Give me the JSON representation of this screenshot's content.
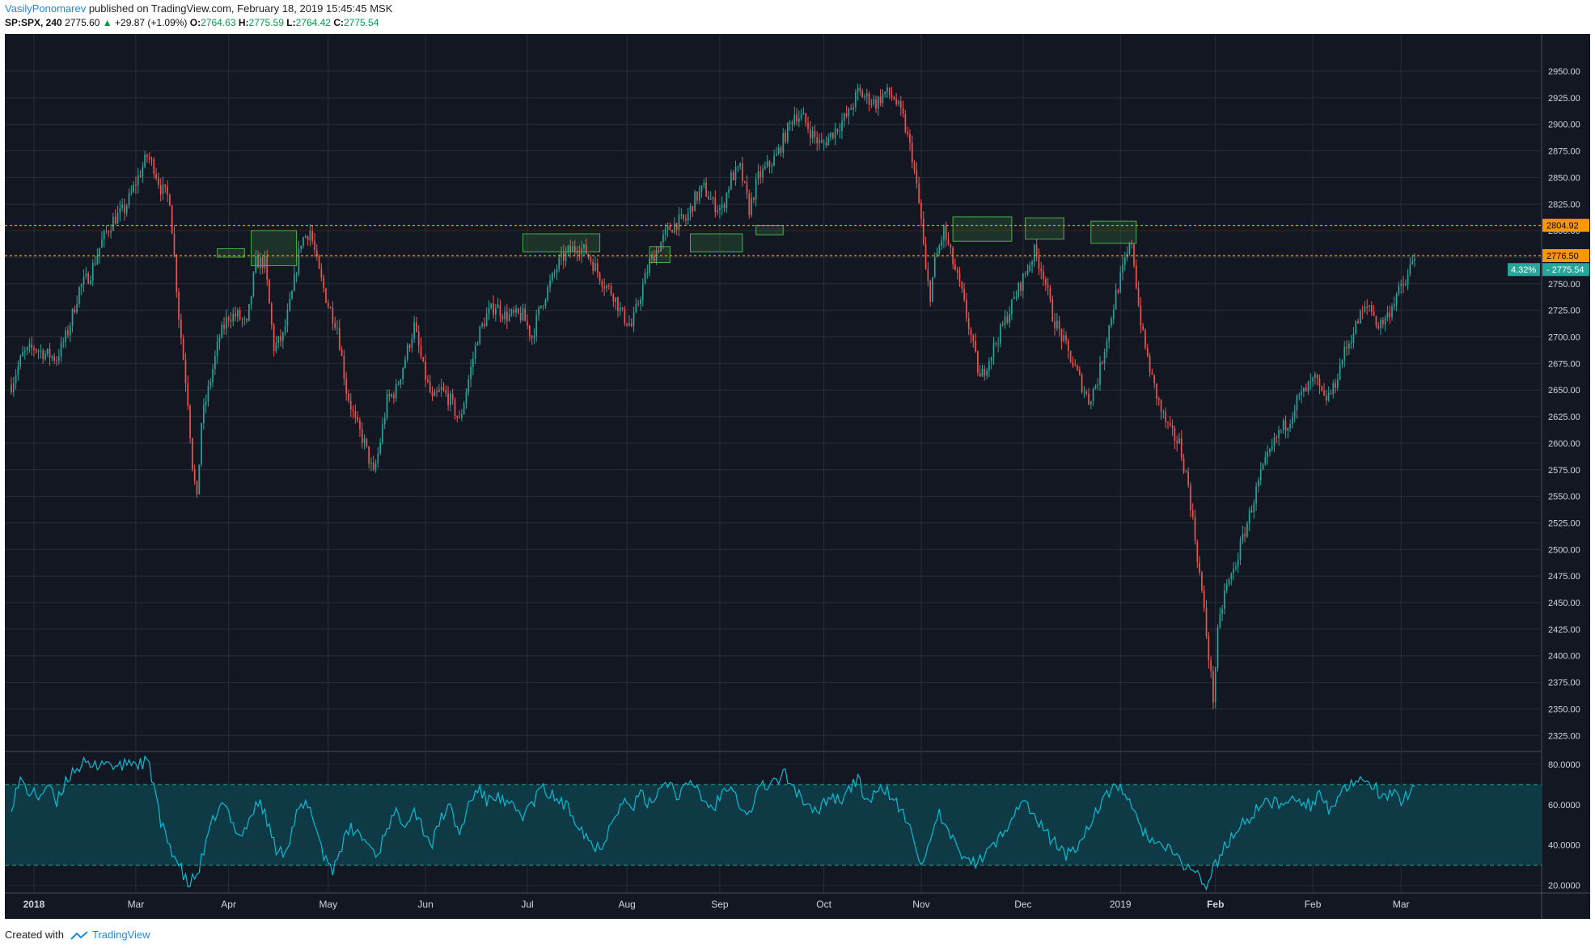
{
  "header": {
    "author": "VasilyPonomarev",
    "published_text": "published on TradingView.com, February 18, 2019 15:45:45 MSK",
    "symbol": "SP:SPX, 240",
    "last": "2775.60",
    "arrow": "▲",
    "change": "+29.87 (+1.09%)",
    "open_label": "O:",
    "open": "2764.63",
    "high_label": "H:",
    "high": "2775.59",
    "low_label": "L:",
    "low": "2764.42",
    "close_label": "C:",
    "close": "2775.54"
  },
  "footer": {
    "created_with": "Created with",
    "brand": "TradingView"
  },
  "colors": {
    "background": "#131722",
    "grid": "#2a2e39",
    "up": "#26a69a",
    "down": "#ef5350",
    "level": "#ff9800",
    "box": "#4caf50",
    "rsi": "#00bcd4",
    "rsi_band": "#0e3a45",
    "rsi_level": "#26a69a"
  },
  "chart_data": [
    {
      "type": "candlestick",
      "symbol": "SP:SPX",
      "interval": "240",
      "x_ticks": [
        "2018",
        "Feb",
        "Mar",
        "Apr",
        "May",
        "Jun",
        "Jul",
        "Aug",
        "Sep",
        "Oct",
        "Nov",
        "Dec",
        "2019",
        "Feb",
        "Mar"
      ],
      "y_ticks": [
        "2950.00",
        "2925.00",
        "2900.00",
        "2875.00",
        "2850.00",
        "2825.00",
        "2800.00",
        "2775.00",
        "2750.00",
        "2725.00",
        "2700.00",
        "2675.00",
        "2650.00",
        "2625.00",
        "2600.00",
        "2575.00",
        "2550.00",
        "2525.00",
        "2500.00",
        "2475.00",
        "2450.00",
        "2425.00",
        "2400.00",
        "2375.00",
        "2350.00",
        "2325.00"
      ],
      "ylim": [
        2310,
        2985
      ],
      "grid": true,
      "price_path": [
        [
          0,
          2655
        ],
        [
          5,
          2683
        ],
        [
          10,
          2690
        ],
        [
          15,
          2684
        ],
        [
          20,
          2680
        ],
        [
          25,
          2705
        ],
        [
          30,
          2745
        ],
        [
          35,
          2760
        ],
        [
          40,
          2790
        ],
        [
          45,
          2810
        ],
        [
          50,
          2820
        ],
        [
          55,
          2845
        ],
        [
          60,
          2870
        ],
        [
          63,
          2860
        ],
        [
          66,
          2840
        ],
        [
          70,
          2830
        ],
        [
          74,
          2720
        ],
        [
          78,
          2640
        ],
        [
          80,
          2580
        ],
        [
          82,
          2545
        ],
        [
          84,
          2620
        ],
        [
          88,
          2660
        ],
        [
          92,
          2700
        ],
        [
          96,
          2720
        ],
        [
          100,
          2720
        ],
        [
          104,
          2710
        ],
        [
          108,
          2770
        ],
        [
          112,
          2770
        ],
        [
          116,
          2690
        ],
        [
          120,
          2700
        ],
        [
          124,
          2740
        ],
        [
          128,
          2790
        ],
        [
          132,
          2800
        ],
        [
          136,
          2760
        ],
        [
          140,
          2730
        ],
        [
          144,
          2710
        ],
        [
          148,
          2650
        ],
        [
          152,
          2620
        ],
        [
          156,
          2600
        ],
        [
          160,
          2570
        ],
        [
          162,
          2590
        ],
        [
          166,
          2640
        ],
        [
          170,
          2650
        ],
        [
          174,
          2680
        ],
        [
          178,
          2710
        ],
        [
          182,
          2670
        ],
        [
          186,
          2640
        ],
        [
          190,
          2650
        ],
        [
          194,
          2640
        ],
        [
          198,
          2620
        ],
        [
          202,
          2660
        ],
        [
          206,
          2700
        ],
        [
          210,
          2720
        ],
        [
          214,
          2730
        ],
        [
          218,
          2720
        ],
        [
          222,
          2720
        ],
        [
          226,
          2720
        ],
        [
          230,
          2700
        ],
        [
          234,
          2730
        ],
        [
          238,
          2750
        ],
        [
          242,
          2770
        ],
        [
          246,
          2780
        ],
        [
          250,
          2785
        ],
        [
          254,
          2780
        ],
        [
          258,
          2765
        ],
        [
          262,
          2750
        ],
        [
          266,
          2740
        ],
        [
          270,
          2720
        ],
        [
          274,
          2710
        ],
        [
          278,
          2740
        ],
        [
          282,
          2770
        ],
        [
          286,
          2785
        ],
        [
          290,
          2800
        ],
        [
          294,
          2808
        ],
        [
          298,
          2810
        ],
        [
          302,
          2830
        ],
        [
          306,
          2840
        ],
        [
          310,
          2825
        ],
        [
          314,
          2820
        ],
        [
          318,
          2850
        ],
        [
          322,
          2858
        ],
        [
          326,
          2820
        ],
        [
          330,
          2850
        ],
        [
          334,
          2860
        ],
        [
          338,
          2870
        ],
        [
          342,
          2890
        ],
        [
          346,
          2910
        ],
        [
          350,
          2905
        ],
        [
          354,
          2890
        ],
        [
          358,
          2880
        ],
        [
          362,
          2890
        ],
        [
          366,
          2900
        ],
        [
          370,
          2910
        ],
        [
          374,
          2930
        ],
        [
          378,
          2925
        ],
        [
          382,
          2920
        ],
        [
          386,
          2930
        ],
        [
          390,
          2925
        ],
        [
          394,
          2905
        ],
        [
          398,
          2870
        ],
        [
          400,
          2840
        ],
        [
          402,
          2810
        ],
        [
          404,
          2760
        ],
        [
          406,
          2740
        ],
        [
          408,
          2770
        ],
        [
          412,
          2800
        ],
        [
          416,
          2770
        ],
        [
          420,
          2740
        ],
        [
          424,
          2700
        ],
        [
          428,
          2660
        ],
        [
          432,
          2680
        ],
        [
          436,
          2700
        ],
        [
          440,
          2720
        ],
        [
          444,
          2740
        ],
        [
          448,
          2760
        ],
        [
          450,
          2770
        ],
        [
          452,
          2780
        ],
        [
          456,
          2760
        ],
        [
          460,
          2720
        ],
        [
          464,
          2700
        ],
        [
          468,
          2680
        ],
        [
          472,
          2660
        ],
        [
          476,
          2640
        ],
        [
          480,
          2660
        ],
        [
          484,
          2700
        ],
        [
          488,
          2740
        ],
        [
          492,
          2770
        ],
        [
          495,
          2790
        ],
        [
          498,
          2730
        ],
        [
          500,
          2700
        ],
        [
          504,
          2660
        ],
        [
          508,
          2630
        ],
        [
          512,
          2610
        ],
        [
          516,
          2600
        ],
        [
          520,
          2560
        ],
        [
          523,
          2510
        ],
        [
          526,
          2460
        ],
        [
          528,
          2420
        ],
        [
          530,
          2380
        ],
        [
          531,
          2360
        ],
        [
          533,
          2420
        ],
        [
          536,
          2460
        ],
        [
          540,
          2480
        ],
        [
          544,
          2510
        ],
        [
          548,
          2540
        ],
        [
          552,
          2570
        ],
        [
          556,
          2590
        ],
        [
          560,
          2610
        ],
        [
          564,
          2620
        ],
        [
          568,
          2640
        ],
        [
          572,
          2650
        ],
        [
          576,
          2660
        ],
        [
          580,
          2640
        ],
        [
          584,
          2650
        ],
        [
          588,
          2680
        ],
        [
          592,
          2700
        ],
        [
          596,
          2720
        ],
        [
          600,
          2730
        ],
        [
          604,
          2710
        ],
        [
          608,
          2720
        ],
        [
          612,
          2740
        ],
        [
          616,
          2750
        ],
        [
          618,
          2765
        ],
        [
          620,
          2776
        ]
      ],
      "n_bars": 620,
      "x_tick_positions": {
        "2018": 10,
        "Feb": 55,
        "Mar": 96,
        "Apr": 140,
        "May": 183,
        "Jun": 228,
        "Jul": 272,
        "Aug": 313,
        "Sep": 359,
        "Oct": 402,
        "Nov": 447,
        "Dec": 490,
        "2019": 532,
        "Feb2": 575,
        "Mar2": 614
      },
      "horizontal_levels": [
        {
          "value": 2804.92,
          "label": "2804.92"
        },
        {
          "value": 2776.5,
          "label": "2776.50"
        }
      ],
      "price_badge": {
        "pct": "4.32%",
        "value": "2775.54",
        "price": 2775.54
      },
      "boxes": [
        {
          "x0": 91,
          "x1": 103,
          "y0": 2775,
          "y1": 2783
        },
        {
          "x0": 106,
          "x1": 126,
          "y0": 2800,
          "y1": 2767
        },
        {
          "x0": 226,
          "x1": 260,
          "y0": 2780,
          "y1": 2797
        },
        {
          "x0": 282,
          "x1": 291,
          "y0": 2770,
          "y1": 2785
        },
        {
          "x0": 300,
          "x1": 323,
          "y0": 2780,
          "y1": 2797
        },
        {
          "x0": 329,
          "x1": 341,
          "y0": 2796,
          "y1": 2805
        },
        {
          "x0": 416,
          "x1": 442,
          "y0": 2790,
          "y1": 2813
        },
        {
          "x0": 448,
          "x1": 465,
          "y0": 2792,
          "y1": 2812
        },
        {
          "x0": 477,
          "x1": 497,
          "y0": 2788,
          "y1": 2809
        }
      ]
    },
    {
      "type": "line",
      "name": "",
      "y_ticks": [
        "80.0000",
        "60.0000",
        "40.0000",
        "20.0000"
      ],
      "ylim": [
        17,
        86
      ],
      "band": [
        30,
        70
      ],
      "path": [
        [
          0,
          60
        ],
        [
          4,
          72
        ],
        [
          8,
          66
        ],
        [
          12,
          64
        ],
        [
          16,
          70
        ],
        [
          20,
          60
        ],
        [
          24,
          72
        ],
        [
          28,
          78
        ],
        [
          32,
          80
        ],
        [
          36,
          78
        ],
        [
          40,
          82
        ],
        [
          44,
          80
        ],
        [
          48,
          78
        ],
        [
          52,
          82
        ],
        [
          56,
          80
        ],
        [
          60,
          82
        ],
        [
          63,
          70
        ],
        [
          66,
          50
        ],
        [
          70,
          40
        ],
        [
          74,
          30
        ],
        [
          78,
          20
        ],
        [
          82,
          25
        ],
        [
          86,
          40
        ],
        [
          90,
          55
        ],
        [
          94,
          60
        ],
        [
          98,
          50
        ],
        [
          102,
          45
        ],
        [
          106,
          55
        ],
        [
          110,
          62
        ],
        [
          114,
          48
        ],
        [
          118,
          35
        ],
        [
          122,
          40
        ],
        [
          126,
          55
        ],
        [
          130,
          60
        ],
        [
          134,
          52
        ],
        [
          138,
          35
        ],
        [
          142,
          28
        ],
        [
          146,
          40
        ],
        [
          150,
          48
        ],
        [
          154,
          45
        ],
        [
          158,
          40
        ],
        [
          162,
          35
        ],
        [
          166,
          50
        ],
        [
          170,
          55
        ],
        [
          174,
          52
        ],
        [
          178,
          58
        ],
        [
          182,
          48
        ],
        [
          186,
          40
        ],
        [
          190,
          55
        ],
        [
          194,
          58
        ],
        [
          198,
          45
        ],
        [
          202,
          60
        ],
        [
          206,
          68
        ],
        [
          210,
          62
        ],
        [
          214,
          65
        ],
        [
          218,
          60
        ],
        [
          222,
          58
        ],
        [
          226,
          55
        ],
        [
          230,
          60
        ],
        [
          234,
          68
        ],
        [
          238,
          65
        ],
        [
          242,
          62
        ],
        [
          246,
          58
        ],
        [
          250,
          52
        ],
        [
          254,
          45
        ],
        [
          258,
          38
        ],
        [
          262,
          42
        ],
        [
          266,
          55
        ],
        [
          270,
          62
        ],
        [
          274,
          58
        ],
        [
          278,
          65
        ],
        [
          282,
          60
        ],
        [
          286,
          68
        ],
        [
          290,
          72
        ],
        [
          294,
          65
        ],
        [
          298,
          68
        ],
        [
          302,
          70
        ],
        [
          306,
          62
        ],
        [
          310,
          58
        ],
        [
          314,
          66
        ],
        [
          318,
          72
        ],
        [
          322,
          60
        ],
        [
          326,
          55
        ],
        [
          330,
          68
        ],
        [
          334,
          70
        ],
        [
          338,
          72
        ],
        [
          342,
          75
        ],
        [
          346,
          68
        ],
        [
          350,
          62
        ],
        [
          354,
          55
        ],
        [
          358,
          60
        ],
        [
          362,
          65
        ],
        [
          366,
          62
        ],
        [
          370,
          68
        ],
        [
          374,
          72
        ],
        [
          378,
          62
        ],
        [
          382,
          65
        ],
        [
          386,
          68
        ],
        [
          390,
          62
        ],
        [
          394,
          55
        ],
        [
          398,
          45
        ],
        [
          402,
          32
        ],
        [
          406,
          40
        ],
        [
          410,
          55
        ],
        [
          414,
          45
        ],
        [
          418,
          38
        ],
        [
          422,
          35
        ],
        [
          426,
          30
        ],
        [
          430,
          35
        ],
        [
          434,
          40
        ],
        [
          438,
          45
        ],
        [
          442,
          55
        ],
        [
          446,
          62
        ],
        [
          450,
          58
        ],
        [
          454,
          50
        ],
        [
          458,
          45
        ],
        [
          462,
          40
        ],
        [
          466,
          35
        ],
        [
          470,
          38
        ],
        [
          474,
          45
        ],
        [
          478,
          55
        ],
        [
          482,
          60
        ],
        [
          486,
          68
        ],
        [
          490,
          70
        ],
        [
          494,
          60
        ],
        [
          498,
          50
        ],
        [
          502,
          45
        ],
        [
          506,
          40
        ],
        [
          510,
          38
        ],
        [
          514,
          35
        ],
        [
          518,
          30
        ],
        [
          522,
          28
        ],
        [
          526,
          22
        ],
        [
          528,
          18
        ],
        [
          530,
          25
        ],
        [
          534,
          35
        ],
        [
          538,
          42
        ],
        [
          542,
          48
        ],
        [
          546,
          52
        ],
        [
          550,
          58
        ],
        [
          554,
          60
        ],
        [
          558,
          62
        ],
        [
          562,
          58
        ],
        [
          566,
          65
        ],
        [
          570,
          62
        ],
        [
          574,
          60
        ],
        [
          578,
          66
        ],
        [
          582,
          58
        ],
        [
          586,
          62
        ],
        [
          590,
          68
        ],
        [
          594,
          70
        ],
        [
          598,
          72
        ],
        [
          602,
          70
        ],
        [
          606,
          62
        ],
        [
          610,
          66
        ],
        [
          614,
          60
        ],
        [
          618,
          68
        ],
        [
          620,
          71
        ]
      ]
    }
  ]
}
